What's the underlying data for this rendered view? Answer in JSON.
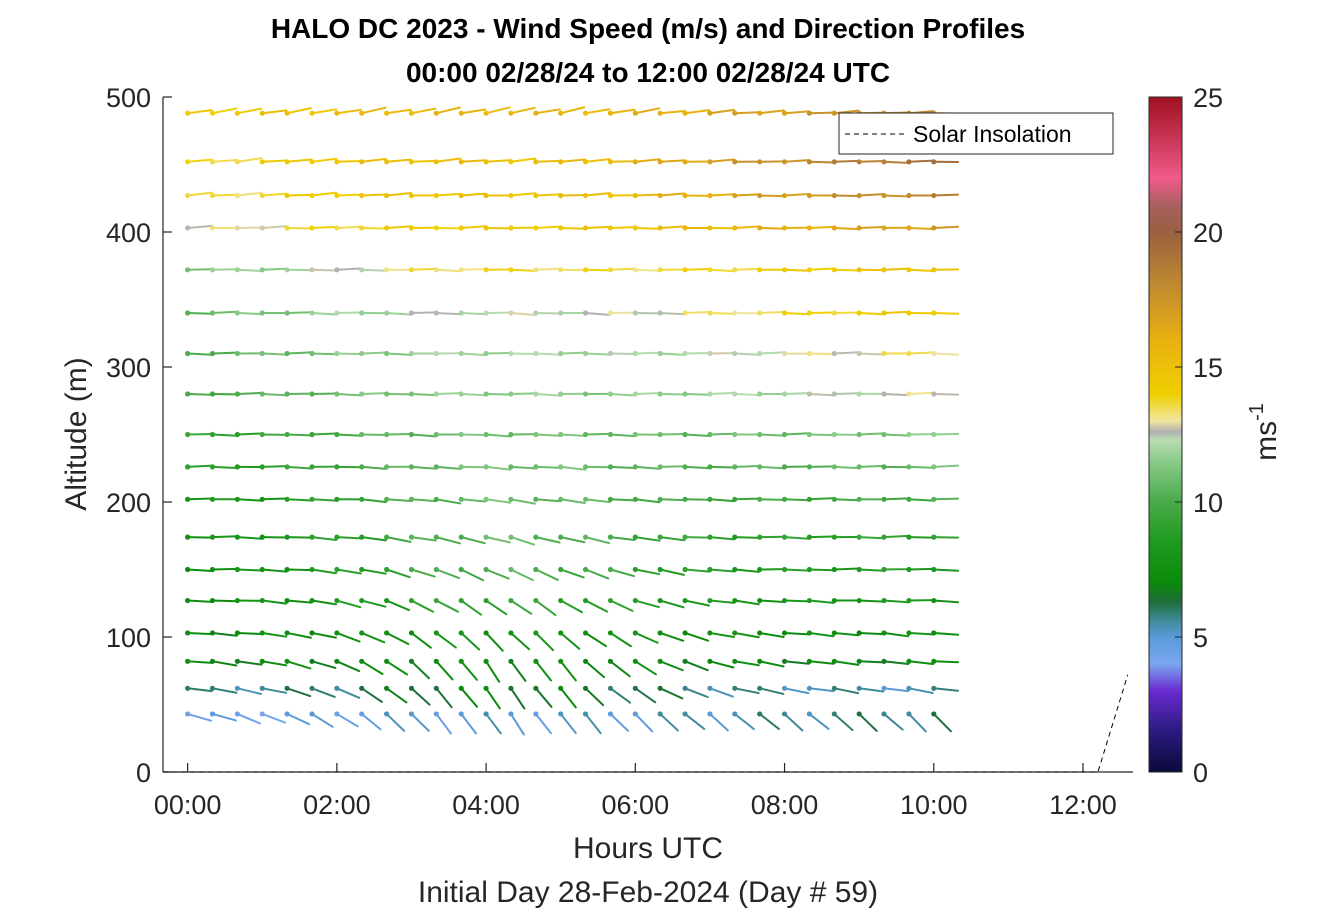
{
  "chart_data": {
    "type": "wind-barb-profile",
    "title": "HALO DC 2023 - Wind Speed (m/s) and Direction Profiles",
    "subtitle": "00:00 02/28/24 to 12:00 02/28/24  UTC",
    "xlabel": "Hours UTC",
    "xlabel2": "Initial Day 28-Feb-2024 (Day # 59)",
    "ylabel": "Altitude (m)",
    "xlim": [
      -0.33,
      12.67
    ],
    "ylim": [
      0,
      500
    ],
    "xticks": [
      0,
      2,
      4,
      6,
      8,
      10,
      12
    ],
    "xtick_labels": [
      "00:00",
      "02:00",
      "04:00",
      "06:00",
      "08:00",
      "10:00",
      "12:00"
    ],
    "yticks": [
      0,
      100,
      200,
      300,
      400,
      500
    ],
    "ytick_labels": [
      "0",
      "100",
      "200",
      "300",
      "400",
      "500"
    ],
    "colorbar": {
      "min": 0,
      "max": 25,
      "ticks": [
        0,
        5,
        10,
        15,
        20,
        25
      ],
      "tick_labels": [
        "0",
        "5",
        "10",
        "15",
        "20",
        "25"
      ],
      "label": "ms",
      "label_superscript": "-1",
      "stops": [
        [
          0,
          "#0a0a3a"
        ],
        [
          1.5,
          "#2a1a80"
        ],
        [
          3,
          "#6a2ad0"
        ],
        [
          4,
          "#7aa6f0"
        ],
        [
          5,
          "#5a9ad8"
        ],
        [
          5.6,
          "#3f8a9a"
        ],
        [
          6.3,
          "#1e6e3a"
        ],
        [
          7,
          "#0b8a0b"
        ],
        [
          8.5,
          "#1e9a1e"
        ],
        [
          10,
          "#4aaa4a"
        ],
        [
          11.5,
          "#8acb8a"
        ],
        [
          12.3,
          "#b8dcb0"
        ],
        [
          12.6,
          "#b0b0b0"
        ],
        [
          13,
          "#f0e6a0"
        ],
        [
          14,
          "#f0d000"
        ],
        [
          16,
          "#e8b010"
        ],
        [
          18,
          "#c08a30"
        ],
        [
          20,
          "#9a6040"
        ],
        [
          21,
          "#a86060"
        ],
        [
          22,
          "#f05a8a"
        ],
        [
          25,
          "#a01020"
        ]
      ]
    },
    "legend": {
      "entries": [
        "Solar Insolation"
      ],
      "location": "top-right"
    },
    "solar_insolation": {
      "x": [
        -0.33,
        12.2,
        12.6
      ],
      "y": [
        0,
        0,
        72
      ]
    },
    "time_hours": [
      0,
      0.333,
      0.667,
      1.0,
      1.333,
      1.667,
      2.0,
      2.333,
      2.667,
      3.0,
      3.333,
      3.667,
      4.0,
      4.333,
      4.667,
      5.0,
      5.333,
      5.667,
      6.0,
      6.333,
      6.667,
      7.0,
      7.333,
      7.667,
      8.0,
      8.333,
      8.667,
      9.0,
      9.333,
      9.667,
      10.0
    ],
    "altitudes_m": [
      43,
      62,
      82,
      103,
      127,
      150,
      174,
      202,
      226,
      250,
      280,
      310,
      340,
      372,
      403,
      427,
      452,
      488
    ],
    "profiles": [
      {
        "altitude": 43,
        "speed_start": 4.3,
        "speed_end": 6.0,
        "dir_start": 255,
        "dir_end": 225,
        "dir_mid": 215,
        "speed_mid": 5.0
      },
      {
        "altitude": 62,
        "speed_start": 5.6,
        "speed_end": 5.4,
        "dir_start": 262,
        "dir_end": 262,
        "dir_mid": 215,
        "speed_mid": 6.8
      },
      {
        "altitude": 82,
        "speed_start": 7.0,
        "speed_end": 7.0,
        "dir_start": 265,
        "dir_end": 265,
        "dir_mid": 215,
        "speed_mid": 7.2
      },
      {
        "altitude": 103,
        "speed_start": 7.2,
        "speed_end": 7.4,
        "dir_start": 268,
        "dir_end": 265,
        "dir_mid": 225,
        "speed_mid": 7.8
      },
      {
        "altitude": 127,
        "speed_start": 7.3,
        "speed_end": 8.2,
        "dir_start": 270,
        "dir_end": 268,
        "dir_mid": 235,
        "speed_mid": 9.3
      },
      {
        "altitude": 150,
        "speed_start": 7.5,
        "speed_end": 8.6,
        "dir_start": 270,
        "dir_end": 270,
        "dir_mid": 245,
        "speed_mid": 10.2
      },
      {
        "altitude": 174,
        "speed_start": 7.6,
        "speed_end": 9.2,
        "dir_start": 270,
        "dir_end": 270,
        "dir_mid": 255,
        "speed_mid": 10.6
      },
      {
        "altitude": 202,
        "speed_start": 7.8,
        "speed_end": 10.0,
        "dir_start": 270,
        "dir_end": 270,
        "dir_mid": 262,
        "speed_mid": 10.8
      },
      {
        "altitude": 226,
        "speed_start": 8.5,
        "speed_end": 10.8,
        "dir_start": 270,
        "dir_end": 270,
        "dir_mid": 266,
        "speed_mid": 11.0
      },
      {
        "altitude": 250,
        "speed_start": 9.0,
        "speed_end": 11.4,
        "dir_start": 270,
        "dir_end": 270,
        "dir_mid": 268,
        "speed_mid": 11.0
      },
      {
        "altitude": 280,
        "speed_start": 9.8,
        "speed_end": 12.8,
        "dir_start": 270,
        "dir_end": 270,
        "dir_mid": 269,
        "speed_mid": 11.6
      },
      {
        "altitude": 310,
        "speed_start": 10.2,
        "speed_end": 13.4,
        "dir_start": 270,
        "dir_end": 270,
        "dir_mid": 269,
        "speed_mid": 12.0
      },
      {
        "altitude": 340,
        "speed_start": 10.6,
        "speed_end": 14.6,
        "dir_start": 270,
        "dir_end": 270,
        "dir_mid": 268,
        "speed_mid": 12.4
      },
      {
        "altitude": 372,
        "speed_start": 11.2,
        "speed_end": 15.0,
        "dir_start": 270,
        "dir_end": 270,
        "dir_mid": 270,
        "speed_mid": 13.6
      },
      {
        "altitude": 403,
        "speed_start": 12.6,
        "speed_end": 17.0,
        "dir_start": 272,
        "dir_end": 270,
        "dir_mid": 271,
        "speed_mid": 14.4
      },
      {
        "altitude": 427,
        "speed_start": 13.2,
        "speed_end": 18.2,
        "dir_start": 275,
        "dir_end": 270,
        "dir_mid": 273,
        "speed_mid": 14.8
      },
      {
        "altitude": 452,
        "speed_start": 13.4,
        "speed_end": 19.2,
        "dir_start": 276,
        "dir_end": 270,
        "dir_mid": 275,
        "speed_mid": 15.0
      },
      {
        "altitude": 488,
        "speed_start": 14.2,
        "speed_end": 17.8,
        "dir_start": 280,
        "dir_end": 272,
        "dir_mid": 282,
        "speed_mid": 15.6
      }
    ]
  }
}
